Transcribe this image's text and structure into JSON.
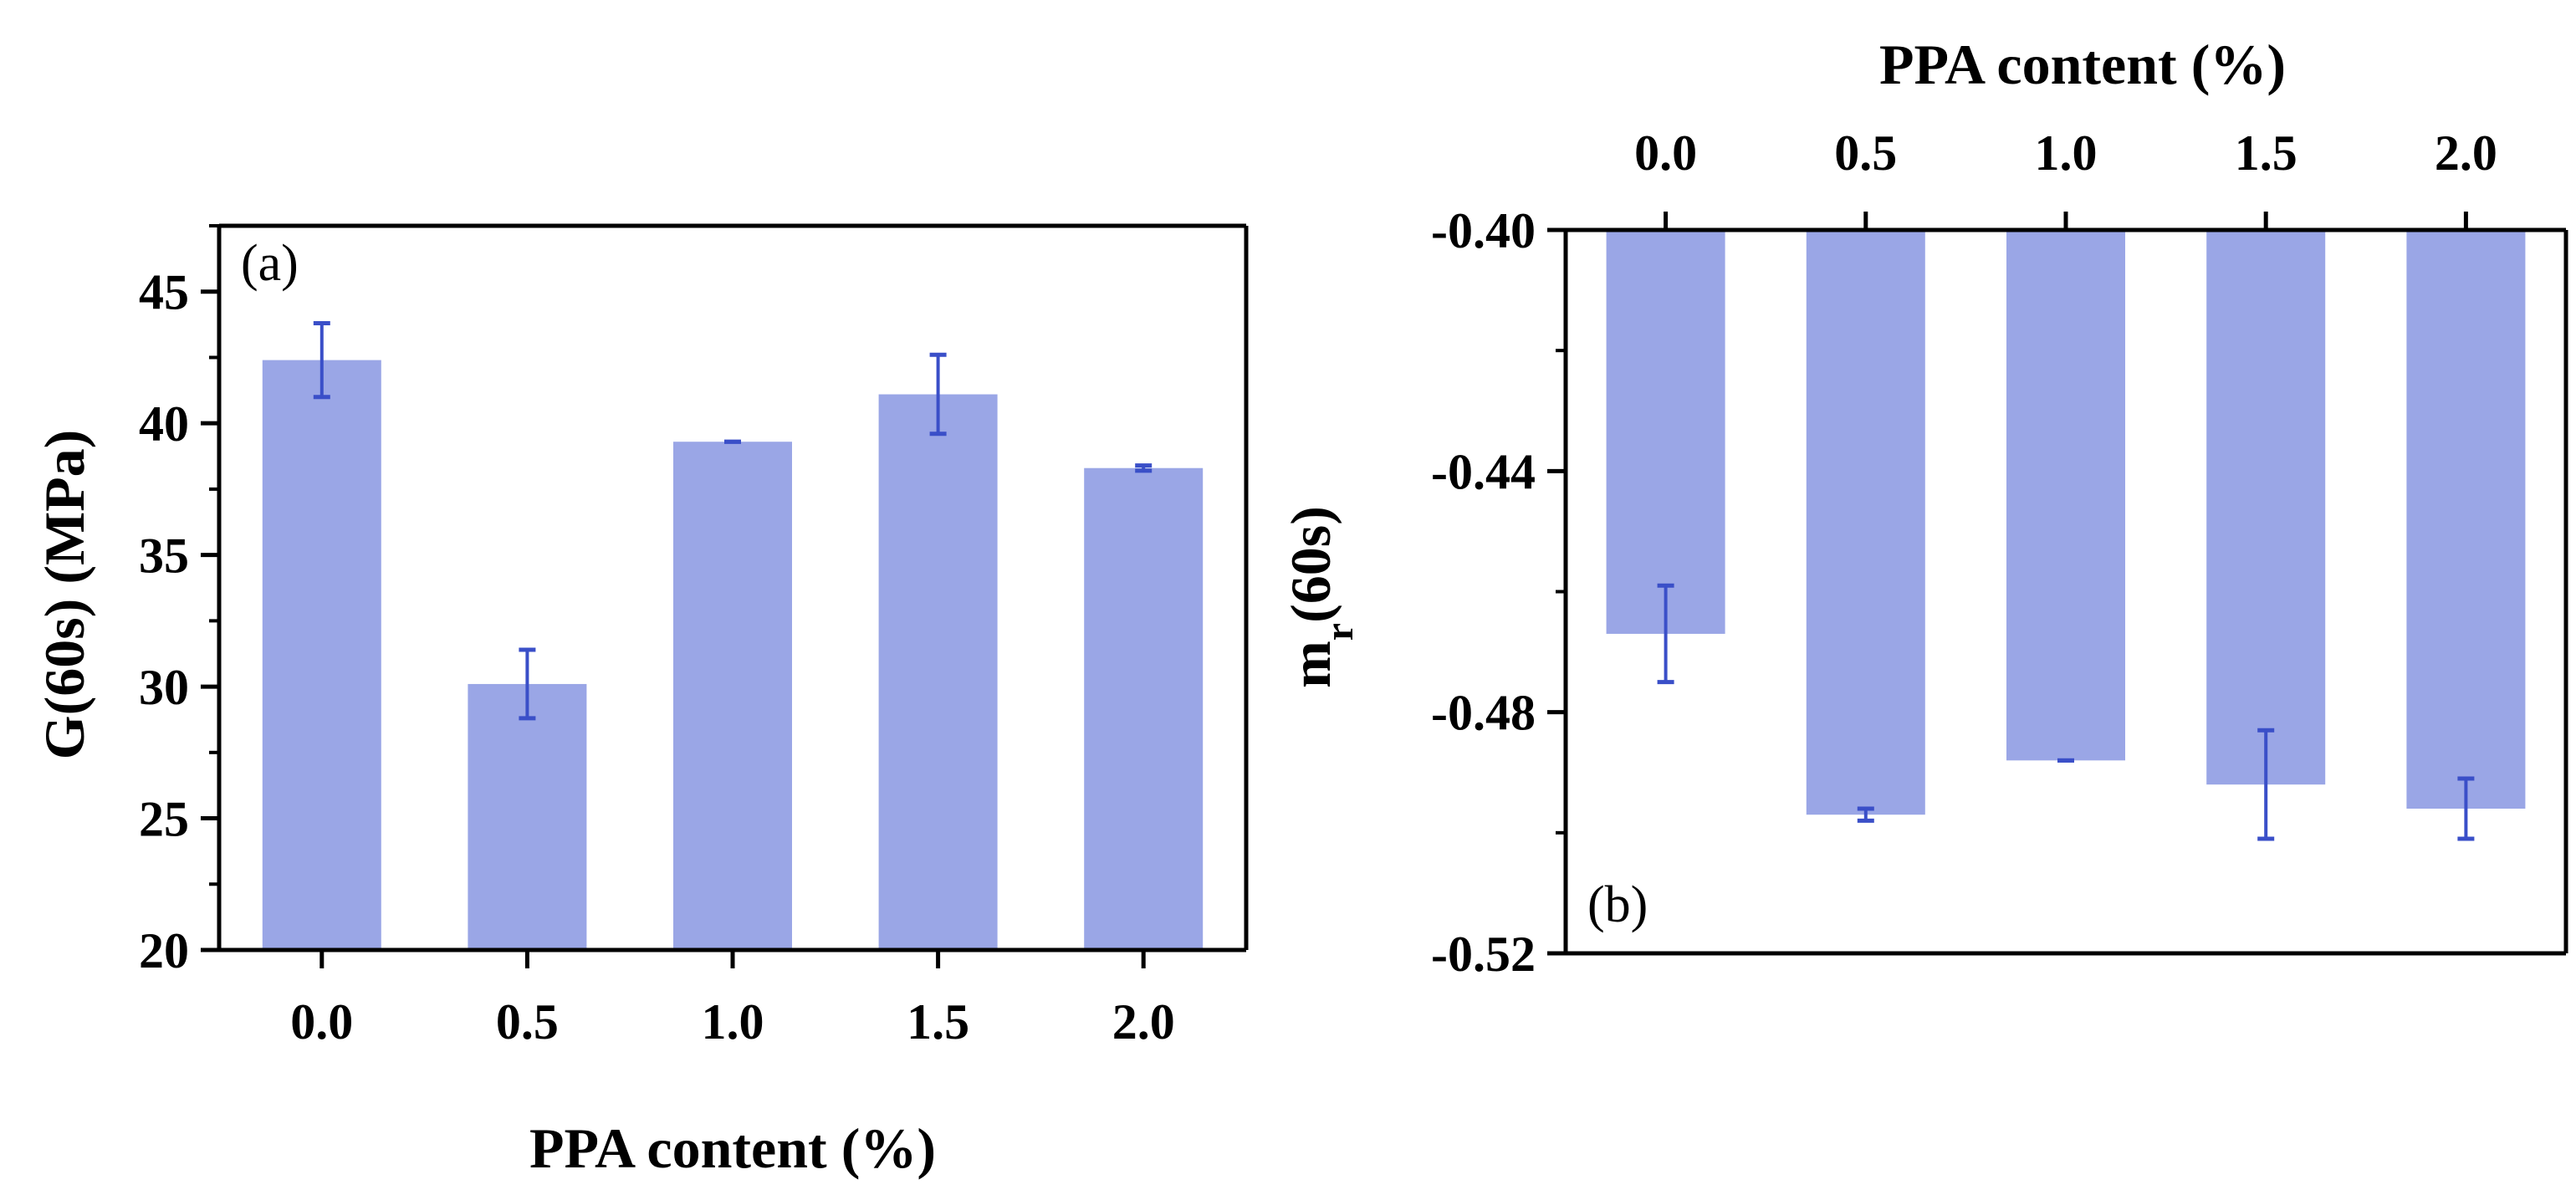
{
  "chart_data": [
    {
      "panel": "(a)",
      "type": "bar",
      "categories": [
        "0.0",
        "0.5",
        "1.0",
        "1.5",
        "2.0"
      ],
      "values": [
        42.4,
        30.1,
        39.3,
        41.1,
        38.3
      ],
      "errors": [
        1.4,
        1.3,
        0.0,
        1.5,
        0.1
      ],
      "xlabel": "PPA content (%)",
      "ylabel": "G(60s) (MPa)",
      "ylim": [
        20,
        47.5
      ],
      "yticks": [
        20,
        25,
        30,
        35,
        40,
        45
      ],
      "ytick_labels": [
        "20",
        "25",
        "30",
        "35",
        "40",
        "45"
      ],
      "x_axis_position": "bottom",
      "bar_color": "#9aa6e6",
      "error_color": "#3a4fc8"
    },
    {
      "panel": "(b)",
      "type": "bar",
      "categories": [
        "0.0",
        "0.5",
        "1.0",
        "1.5",
        "2.0"
      ],
      "values": [
        -0.467,
        -0.497,
        -0.488,
        -0.492,
        -0.496
      ],
      "errors": [
        0.008,
        0.001,
        0.0,
        0.009,
        0.005
      ],
      "xlabel": "PPA content (%)",
      "ylabel_main": "m",
      "ylabel_sub": "r",
      "ylabel_rest": "(60s)",
      "ylim": [
        -0.52,
        -0.4
      ],
      "yticks": [
        -0.52,
        -0.48,
        -0.44,
        -0.4
      ],
      "ytick_labels": [
        "-0.52",
        "-0.48",
        "-0.44",
        "-0.40"
      ],
      "x_axis_position": "top",
      "bar_color": "#9aa6e6",
      "error_color": "#3a4fc8"
    }
  ]
}
